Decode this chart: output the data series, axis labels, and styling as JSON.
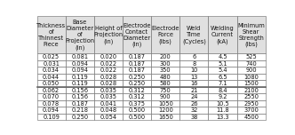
{
  "headers": [
    "Thickness\nof\nThinnest\nPiece",
    "Base\nDiameter\nof\nProjection\n(in)",
    "Height of\nProjection\n(in)",
    "Electrode\nContact\nDiameter\n(in)",
    "Electrode\nForce\n(lbs)",
    "Weld\nTime\n(Cycles)",
    "Welding\nCurrent\n(kA)",
    "Minimum\nShear\nStrength\n(lbs)"
  ],
  "rows": [
    [
      "0.025",
      "0.081",
      "0.020",
      "0.187",
      "200",
      "6",
      "4.5",
      "525"
    ],
    [
      "0.031",
      "0.094",
      "0.022",
      "0.187",
      "300",
      "8",
      "5.1",
      "740"
    ],
    [
      "0.034",
      "0.094",
      "0.022",
      "0.187",
      "350",
      "10",
      "5.4",
      "900"
    ],
    [
      "0.044",
      "0.119",
      "0.028",
      "0.250",
      "480",
      "13",
      "6.5",
      "1080"
    ],
    [
      "0.050",
      "0.119",
      "0.028",
      "0.250",
      "580",
      "16",
      "7.1",
      "1500"
    ],
    [
      "0.062",
      "0.156",
      "0.035",
      "0.312",
      "750",
      "21",
      "8.4",
      "2100"
    ],
    [
      "0.070",
      "0.156",
      "0.035",
      "0.312",
      "900",
      "24",
      "9.2",
      "2550"
    ],
    [
      "0.078",
      "0.187",
      "0.041",
      "0.375",
      "1050",
      "26",
      "10.5",
      "2950"
    ],
    [
      "0.094",
      "0.218",
      "0.048",
      "0.500",
      "1200",
      "32",
      "11.8",
      "3700"
    ],
    [
      "0.109",
      "0.250",
      "0.054",
      "0.500",
      "1650",
      "38",
      "13.3",
      "4500"
    ]
  ],
  "bg_color": "#ffffff",
  "header_bg": "#e0e0e0",
  "line_color": "#666666",
  "text_color": "#111111",
  "font_size": 4.8,
  "header_font_size": 4.8
}
